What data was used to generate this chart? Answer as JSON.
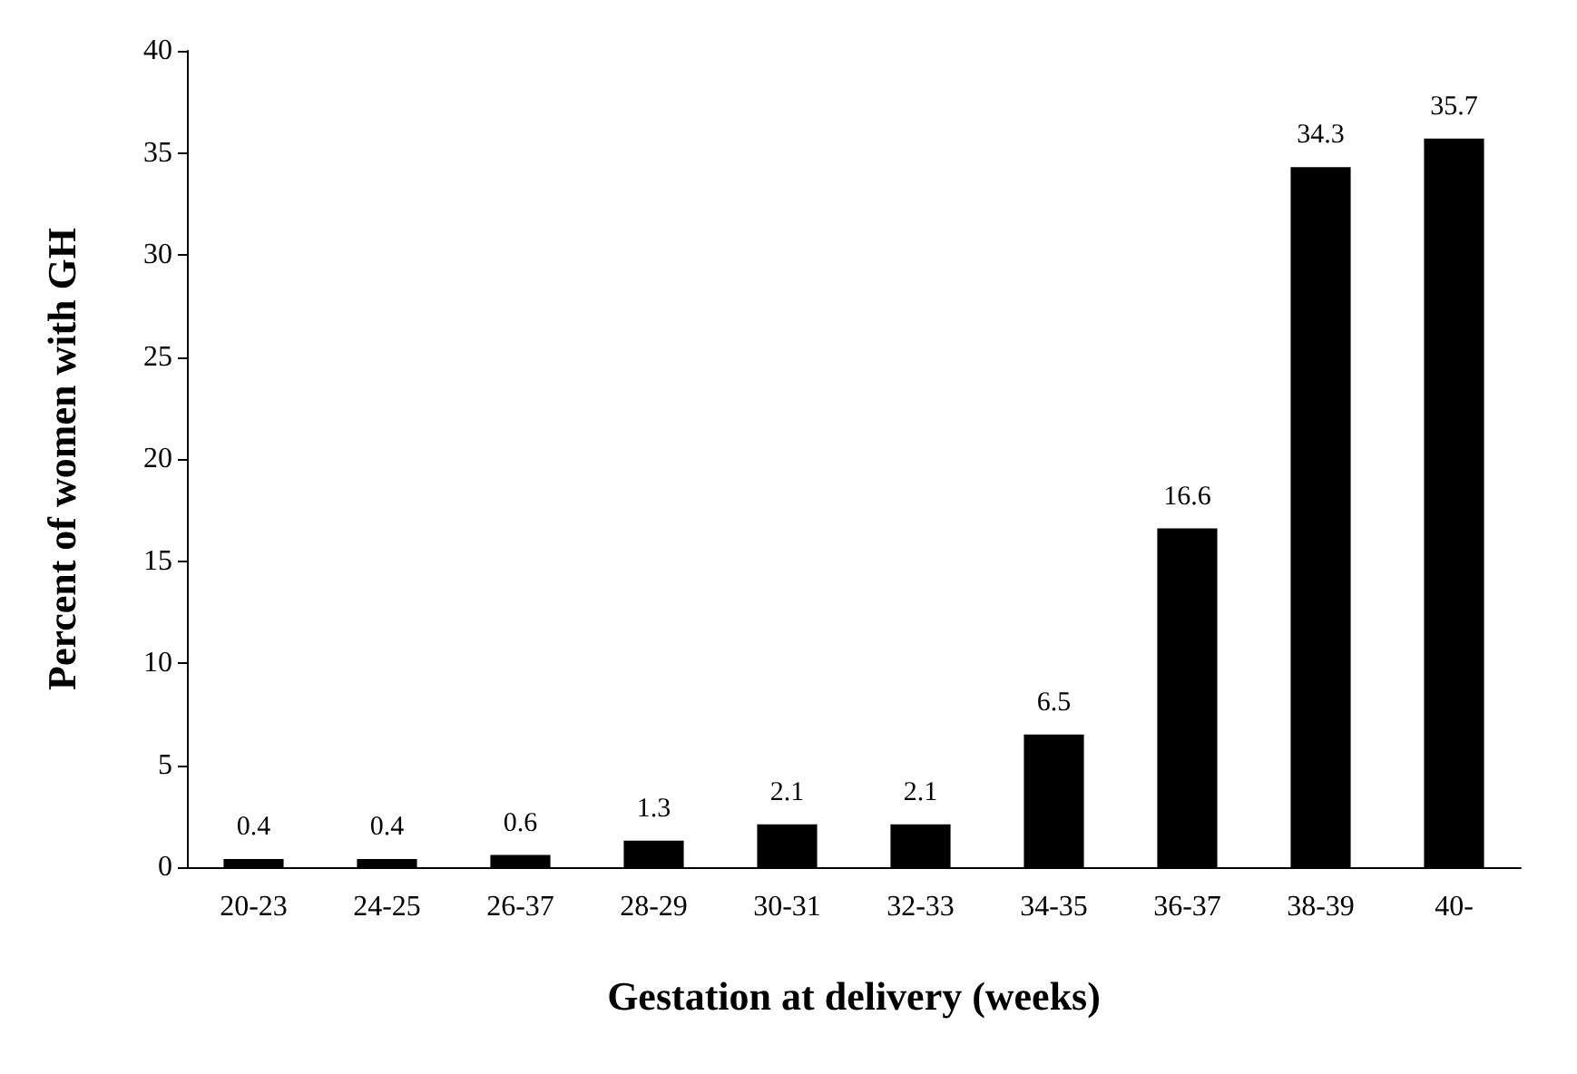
{
  "chart_data": {
    "type": "bar",
    "xlabel": "Gestation at delivery (weeks)",
    "ylabel": "Percent of women with GH",
    "categories": [
      "20-23",
      "24-25",
      "26-37",
      "28-29",
      "30-31",
      "32-33",
      "34-35",
      "36-37",
      "38-39",
      "40-"
    ],
    "values": [
      0.4,
      0.4,
      0.6,
      1.3,
      2.1,
      2.1,
      6.5,
      16.6,
      34.3,
      35.7
    ],
    "color": "#000000",
    "ylim": [
      0,
      40
    ],
    "yticks": [
      0,
      5,
      10,
      15,
      20,
      25,
      30,
      35,
      40
    ],
    "grid": false,
    "data_labels": true
  }
}
